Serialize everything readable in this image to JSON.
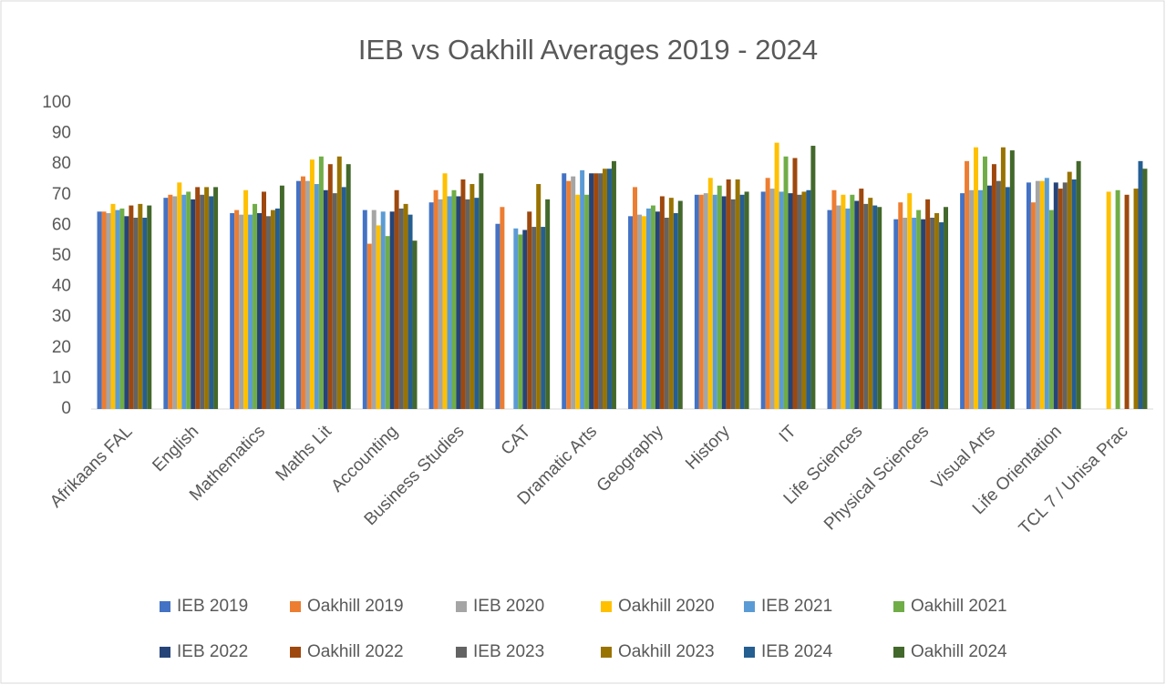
{
  "chart_data": {
    "type": "bar",
    "title": "IEB vs Oakhill Averages 2019 - 2024",
    "categories": [
      "Afrikaans FAL",
      "English",
      "Mathematics",
      "Maths Lit",
      "Accounting",
      "Business Studies",
      "CAT",
      "Dramatic Arts",
      "Geography",
      "History",
      "IT",
      "Life Sciences",
      "Physical Sciences",
      "Visual Arts",
      "Life Orientation",
      "TCL 7  / Unisa Prac"
    ],
    "series": [
      {
        "name": "IEB 2019",
        "color": "#4472c4",
        "values": [
          64.5,
          69,
          64,
          74.5,
          65,
          67.5,
          60.5,
          77,
          63,
          70,
          71,
          65,
          62,
          70.5,
          74,
          null
        ]
      },
      {
        "name": "Oakhill 2019",
        "color": "#ed7d31",
        "values": [
          64.5,
          70,
          65,
          76,
          54,
          71.5,
          66,
          74.5,
          72.5,
          70,
          75.5,
          71.5,
          67.5,
          81,
          67.5,
          null
        ]
      },
      {
        "name": "IEB 2020",
        "color": "#a5a5a5",
        "values": [
          64,
          69.5,
          63.5,
          74.5,
          65,
          68.5,
          null,
          76,
          63.5,
          70.5,
          72,
          66.5,
          62.5,
          71.5,
          74.5,
          null
        ]
      },
      {
        "name": "Oakhill 2020",
        "color": "#ffc000",
        "values": [
          67,
          74,
          71.5,
          81.5,
          60,
          77,
          null,
          70,
          63,
          75.5,
          87,
          70,
          70.5,
          85.5,
          74.5,
          71
        ]
      },
      {
        "name": "IEB 2021",
        "color": "#5b9bd5",
        "values": [
          65,
          70,
          63.5,
          73.5,
          64.5,
          69.5,
          59,
          78,
          65.5,
          70,
          71,
          65.5,
          62.5,
          71.5,
          75.5,
          null
        ]
      },
      {
        "name": "Oakhill 2021",
        "color": "#70ad47",
        "values": [
          65.5,
          71,
          67,
          82.5,
          56.5,
          71.5,
          57,
          70,
          66.5,
          73,
          82.5,
          70,
          65,
          82.5,
          65,
          71.5
        ]
      },
      {
        "name": "IEB 2022",
        "color": "#264478",
        "values": [
          63,
          68.5,
          64,
          71.5,
          64.5,
          69.5,
          58.5,
          77,
          64.5,
          69.5,
          70.5,
          68,
          62,
          73,
          74,
          null
        ]
      },
      {
        "name": "Oakhill 2022",
        "color": "#9e480e",
        "values": [
          66.5,
          72.5,
          71,
          80,
          71.5,
          75,
          64.5,
          77,
          69.5,
          75,
          82,
          72,
          68.5,
          80,
          72,
          70
        ]
      },
      {
        "name": "IEB 2023",
        "color": "#636363",
        "values": [
          62.5,
          70,
          63,
          70.5,
          65.5,
          68.5,
          59.5,
          77,
          62.5,
          68.5,
          70,
          67,
          62.5,
          74.5,
          74,
          null
        ]
      },
      {
        "name": "Oakhill 2023",
        "color": "#997300",
        "values": [
          67,
          72.5,
          65,
          82.5,
          67,
          73.5,
          73.5,
          78.5,
          69,
          75,
          71,
          69,
          64,
          85.5,
          77.5,
          72
        ]
      },
      {
        "name": "IEB 2024",
        "color": "#255e91",
        "values": [
          62.5,
          69.5,
          65.5,
          72.5,
          63.5,
          69,
          59.5,
          78.5,
          64,
          70,
          71.5,
          66.5,
          61,
          72.5,
          75,
          81
        ]
      },
      {
        "name": "Oakhill 2024",
        "color": "#43682b",
        "values": [
          66.5,
          72.5,
          73,
          80,
          55,
          77,
          68.5,
          81,
          68,
          71,
          86,
          66,
          66,
          84.5,
          81,
          78.5
        ]
      }
    ],
    "ylim": [
      0,
      100
    ],
    "yticks": [
      0,
      10,
      20,
      30,
      40,
      50,
      60,
      70,
      80,
      90,
      100
    ],
    "grid": false,
    "legend": "bottom"
  }
}
